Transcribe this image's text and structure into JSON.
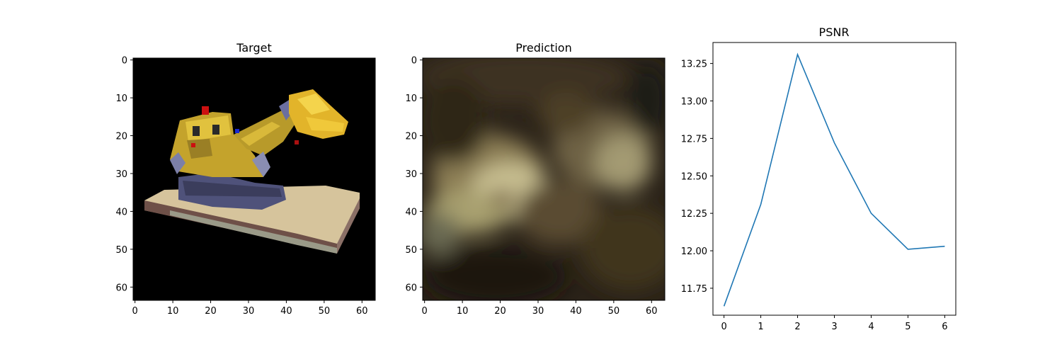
{
  "figure": {
    "panels": [
      {
        "title": "Target"
      },
      {
        "title": "Prediction"
      },
      {
        "title": "PSNR"
      }
    ]
  },
  "chart_data": [
    {
      "type": "heatmap",
      "title": "Target",
      "image_description_palette": [
        "#000000",
        "#e0bf3a",
        "#b89a2a",
        "#6b6fa0",
        "#d9c9a2",
        "#6b4a40",
        "#cc1010"
      ],
      "xticks": [
        0,
        10,
        20,
        30,
        40,
        50,
        60
      ],
      "yticks": [
        0,
        10,
        20,
        30,
        40,
        50,
        60
      ],
      "xlim": [
        -0.5,
        63.5
      ],
      "ylim": [
        63.5,
        -0.5
      ]
    },
    {
      "type": "heatmap",
      "title": "Prediction",
      "image_description_palette": [
        "#1a150e",
        "#6a5a3a",
        "#cfc89a",
        "#3a2e20"
      ],
      "xticks": [
        0,
        10,
        20,
        30,
        40,
        50,
        60
      ],
      "yticks": [
        0,
        10,
        20,
        30,
        40,
        50,
        60
      ],
      "xlim": [
        -0.5,
        63.5
      ],
      "ylim": [
        63.5,
        -0.5
      ]
    },
    {
      "type": "line",
      "title": "PSNR",
      "x": [
        0,
        1,
        2,
        3,
        4,
        5,
        6
      ],
      "series": [
        {
          "values": [
            11.63,
            12.31,
            13.31,
            12.72,
            12.25,
            12.01,
            12.03
          ],
          "color": "#1f77b4"
        }
      ],
      "xticks": [
        0,
        1,
        2,
        3,
        4,
        5,
        6
      ],
      "yticks": [
        11.75,
        12.0,
        12.25,
        12.5,
        12.75,
        13.0,
        13.25
      ],
      "ytick_labels": [
        "11.75",
        "12.00",
        "12.25",
        "12.50",
        "12.75",
        "13.00",
        "13.25"
      ],
      "xlim": [
        -0.3,
        6.3
      ],
      "ylim": [
        11.57,
        13.39
      ],
      "grid": false
    }
  ]
}
